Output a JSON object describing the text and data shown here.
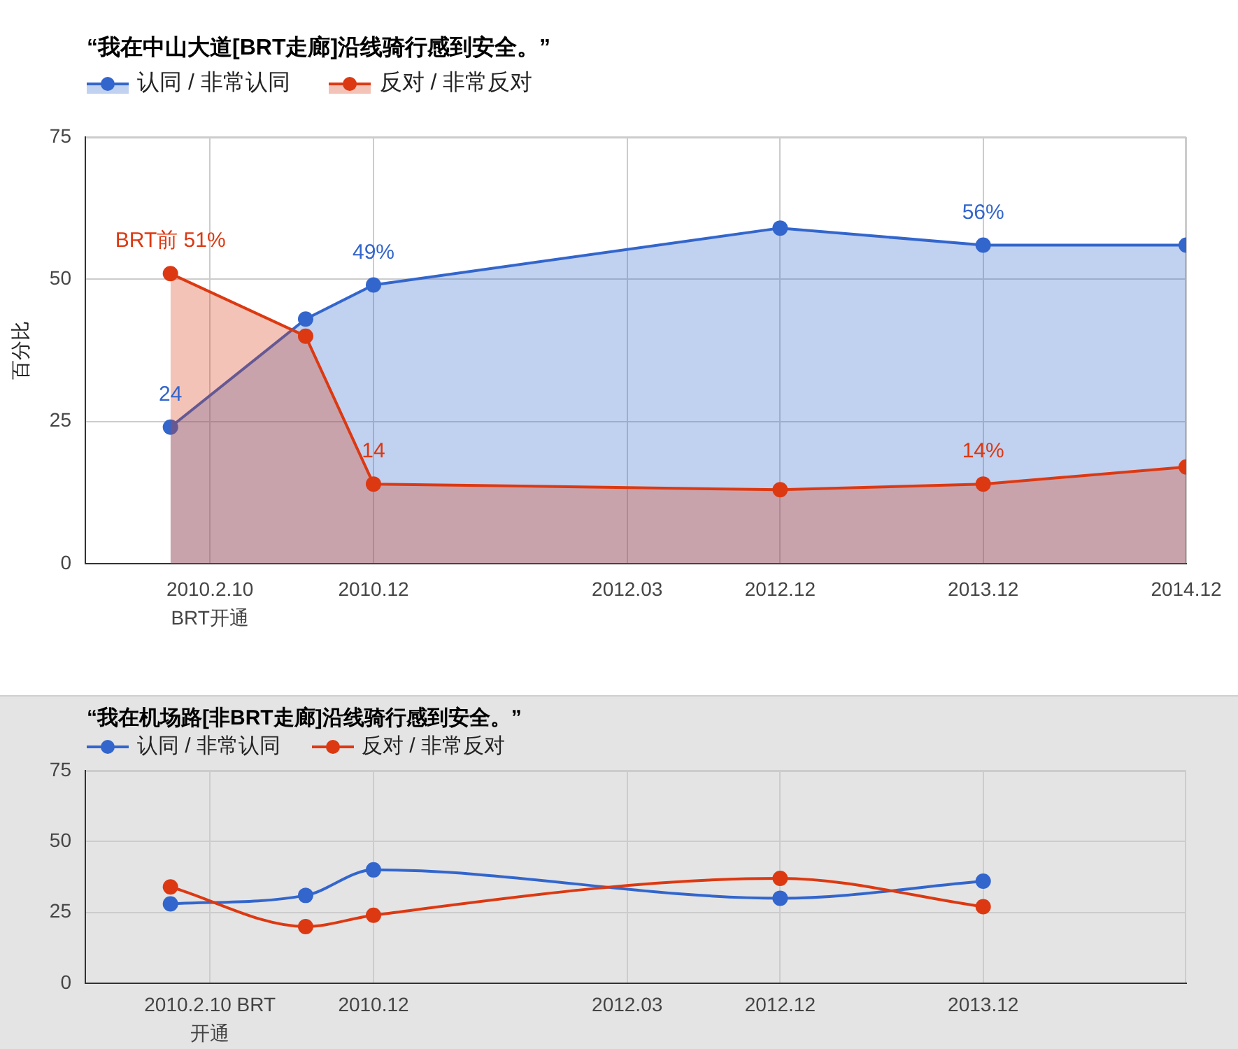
{
  "chart_data": [
    {
      "type": "area",
      "title": "“我在中山大道[BRT走廊]沿线骑行感到安全。”",
      "ylabel": "百分比",
      "x": [
        "2009-12",
        "2010-08",
        "2010-12",
        "2012-12",
        "2013-12",
        "2014-12"
      ],
      "series": [
        {
          "name": "认同 / 非常认同",
          "color": "#3366cc",
          "values": [
            24,
            43,
            49,
            59,
            56,
            56
          ],
          "value_labels": [
            "24",
            null,
            "49%",
            null,
            "56%",
            null
          ]
        },
        {
          "name": "反对 / 非常反对",
          "color": "#dc3912",
          "values": [
            51,
            40,
            14,
            13,
            14,
            17
          ],
          "value_labels": [
            "BRT前 51%",
            null,
            "14",
            null,
            "14%",
            null
          ]
        }
      ],
      "xlim": [
        "2009-07",
        "2014-12"
      ],
      "xticks": [
        {
          "value": "2010-02-10",
          "label": "2010.2.10\nBRT开通"
        },
        {
          "value": "2010-12",
          "label": "2010.12"
        },
        {
          "value": "2012-03",
          "label": "2012.03"
        },
        {
          "value": "2012-12",
          "label": "2012.12"
        },
        {
          "value": "2013-12",
          "label": "2013.12"
        },
        {
          "value": "2014-12",
          "label": "2014.12"
        }
      ],
      "ylim": [
        0,
        75
      ],
      "yticks": [
        0,
        25,
        50,
        75
      ],
      "grid": true,
      "legend": "top left",
      "marker": "circle"
    },
    {
      "type": "line",
      "title": "“我在机场路[非BRT走廊]沿线骑行感到安全。”",
      "x": [
        "2009-12",
        "2010-08",
        "2010-12",
        "2012-12",
        "2013-12"
      ],
      "series": [
        {
          "name": "认同 / 非常认同",
          "color": "#3366cc",
          "values": [
            28,
            31,
            40,
            30,
            36
          ]
        },
        {
          "name": "反对 / 非常反对",
          "color": "#dc3912",
          "values": [
            34,
            20,
            24,
            37,
            27
          ]
        }
      ],
      "xlim": [
        "2009-07",
        "2014-12"
      ],
      "xticks": [
        {
          "value": "2010-02-10",
          "label": "2010.2.10 BRT\n开通"
        },
        {
          "value": "2010-12",
          "label": "2010.12"
        },
        {
          "value": "2012-03",
          "label": "2012.03"
        },
        {
          "value": "2012-12",
          "label": "2012.12"
        },
        {
          "value": "2013-12",
          "label": "2013.12"
        }
      ],
      "ylim": [
        0,
        75
      ],
      "yticks": [
        0,
        25,
        50,
        75
      ],
      "grid": true,
      "legend": "top left",
      "marker": "circle"
    }
  ]
}
